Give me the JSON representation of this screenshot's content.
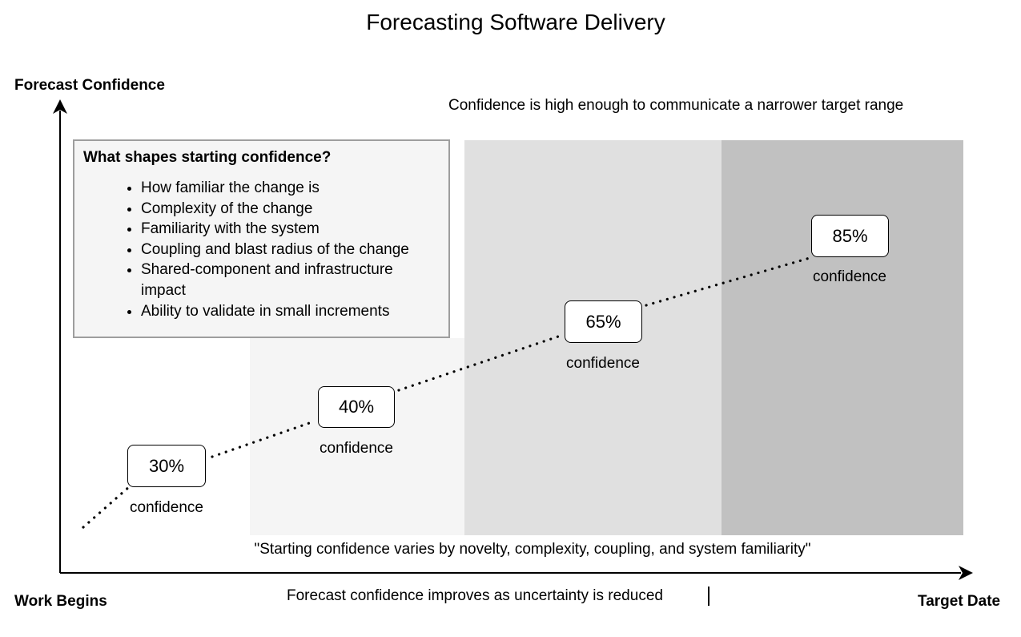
{
  "title": "Forecasting Software Delivery",
  "axes": {
    "y_label": "Forecast Confidence",
    "x_start_label": "Work Begins",
    "x_end_label": "Target Date"
  },
  "zone_caption": "Confidence is high enough to communicate a narrower target range",
  "info_box": {
    "heading": "What shapes starting confidence?",
    "items": [
      "How familiar the change is",
      "Complexity of the change",
      "Familiarity with the system",
      "Coupling and blast radius of the change",
      "Shared-component and infrastructure impact",
      "Ability to validate in small increments"
    ]
  },
  "milestones": [
    {
      "value": "30%",
      "label": "confidence"
    },
    {
      "value": "40%",
      "label": "confidence"
    },
    {
      "value": "65%",
      "label": "confidence"
    },
    {
      "value": "85%",
      "label": "confidence"
    }
  ],
  "quote": "\"Starting confidence varies by novelty, complexity, coupling, and system familiarity\"",
  "footer_caption": "Forecast confidence improves as uncertainty is reduced",
  "colors": {
    "band_light": "#f5f5f5",
    "band_mid": "#e0e0e0",
    "band_dark": "#c1c1c1",
    "info_bg": "#f5f5f5",
    "info_border": "#9e9e9e"
  }
}
